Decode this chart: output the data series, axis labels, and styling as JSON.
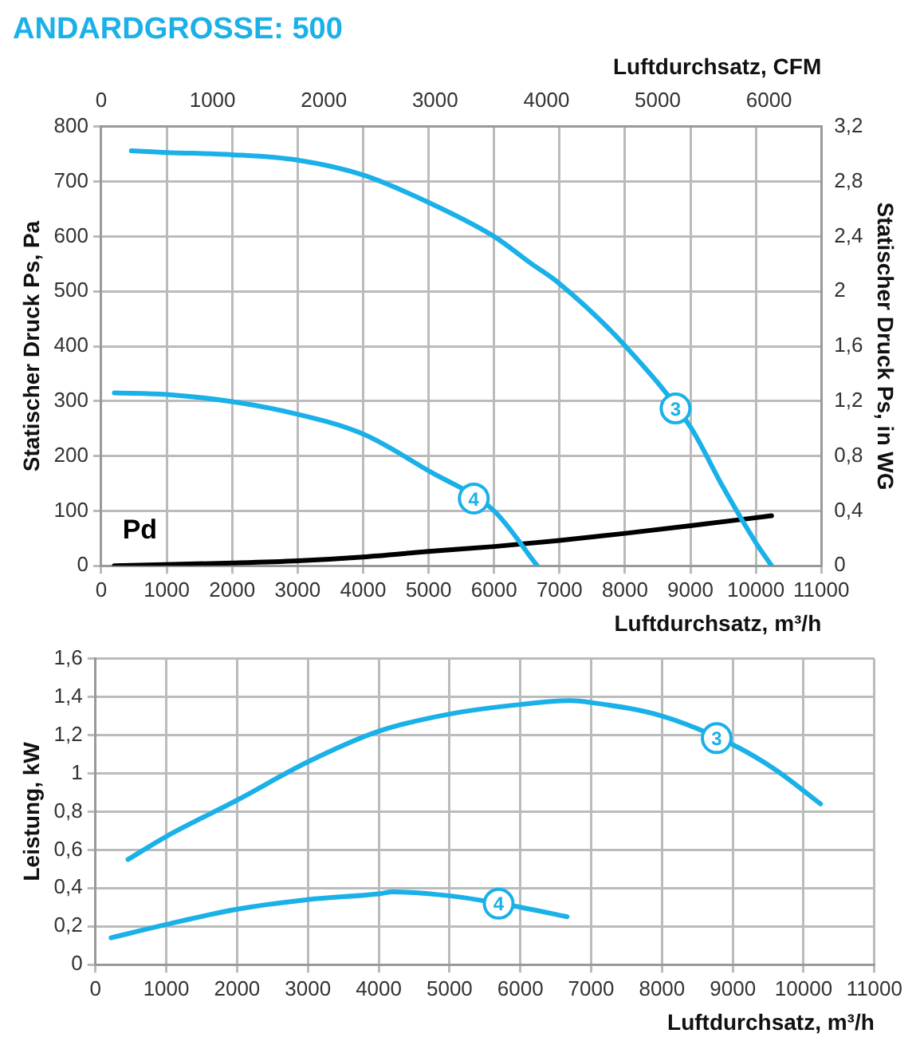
{
  "chart_data": [
    {
      "type": "line",
      "title": "ANDARDGROSSE: 500",
      "xlabel": "Luftdurchsatz, m³/h",
      "x2label": "Luftdurchsatz, CFM",
      "ylabel": "Statischer Druck Ps, Pa",
      "y2label": "Statischer Druck Ps, in WG",
      "xlim": [
        0,
        11000
      ],
      "xticks": [
        0,
        1000,
        2000,
        3000,
        4000,
        5000,
        6000,
        7000,
        8000,
        9000,
        10000,
        11000
      ],
      "x2lim": [
        0,
        6470
      ],
      "x2ticks": [
        0,
        1000,
        2000,
        3000,
        4000,
        5000,
        6000
      ],
      "ylim": [
        0,
        800
      ],
      "yticks": [
        0,
        100,
        200,
        300,
        400,
        500,
        600,
        700,
        800
      ],
      "y2lim": [
        0,
        3.2
      ],
      "y2ticks": [
        0,
        {
          "value": 0.4,
          "label": "0,4"
        },
        {
          "value": 0.8,
          "label": "0,8"
        },
        {
          "value": 1.2,
          "label": "1,2"
        },
        {
          "value": 1.6,
          "label": "1,6"
        },
        2,
        {
          "value": 2.4,
          "label": "2,4"
        },
        {
          "value": 2.8,
          "label": "2,8"
        },
        {
          "value": 3.2,
          "label": "3,2"
        }
      ],
      "grid": true,
      "legend": false,
      "marker": "none",
      "line_style": "solid",
      "series": [
        {
          "name": "3",
          "color": "#1ab0e8",
          "x": [
            460,
            1000,
            2000,
            3000,
            4000,
            5000,
            6000,
            6550,
            7000,
            8000,
            9000,
            9500,
            10000,
            10240
          ],
          "values": [
            756,
            753,
            749,
            739,
            712,
            662,
            600,
            552,
            514,
            401,
            253,
            143,
            42,
            0
          ]
        },
        {
          "name": "4",
          "color": "#1ab0e8",
          "x": [
            200,
            1000,
            2000,
            3000,
            4000,
            5000,
            6000,
            6660
          ],
          "values": [
            315,
            312,
            299,
            276,
            240,
            173,
            100,
            0
          ]
        },
        {
          "name": "Pd",
          "color": "#000000",
          "x": [
            200,
            2000,
            3000,
            4000,
            5000,
            6000,
            7000,
            8000,
            9000,
            10240
          ],
          "values": [
            0,
            5,
            9,
            16,
            26,
            35,
            46,
            59,
            73,
            91
          ]
        }
      ]
    },
    {
      "type": "line",
      "xlabel": "Luftdurchsatz, m³/h",
      "ylabel": "Leistung, kW",
      "xlim": [
        0,
        11000
      ],
      "xticks": [
        0,
        1000,
        2000,
        3000,
        4000,
        5000,
        6000,
        7000,
        8000,
        9000,
        10000,
        11000
      ],
      "ylim": [
        0,
        1.6
      ],
      "yticks": [
        0,
        {
          "value": 0.2,
          "label": "0,2"
        },
        {
          "value": 0.4,
          "label": "0,4"
        },
        {
          "value": 0.6,
          "label": "0,6"
        },
        {
          "value": 0.8,
          "label": "0,8"
        },
        1,
        {
          "value": 1.2,
          "label": "1,2"
        },
        {
          "value": 1.4,
          "label": "1,4"
        },
        {
          "value": 1.6,
          "label": "1,6"
        }
      ],
      "grid": true,
      "legend": false,
      "marker": "none",
      "line_style": "solid",
      "series": [
        {
          "name": "3",
          "color": "#1ab0e8",
          "x": [
            460,
            1000,
            2000,
            3000,
            4000,
            5000,
            6000,
            6700,
            7000,
            8000,
            9000,
            9600,
            10240
          ],
          "values": [
            0.55,
            0.67,
            0.86,
            1.06,
            1.22,
            1.31,
            1.36,
            1.38,
            1.37,
            1.3,
            1.15,
            1.02,
            0.84
          ]
        },
        {
          "name": "4",
          "color": "#1ab0e8",
          "x": [
            220,
            1000,
            2000,
            3000,
            4000,
            4200,
            5000,
            6000,
            6660
          ],
          "values": [
            0.14,
            0.21,
            0.29,
            0.34,
            0.37,
            0.38,
            0.36,
            0.3,
            0.25
          ]
        }
      ]
    }
  ]
}
